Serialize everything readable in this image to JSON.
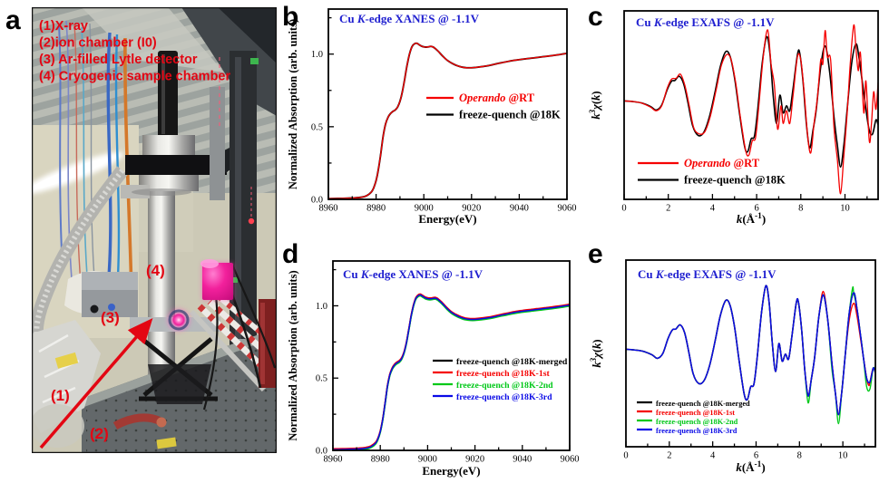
{
  "panels": {
    "a": "a",
    "b": "b",
    "c": "c",
    "d": "d",
    "e": "e"
  },
  "colors": {
    "annotation_red": "#e30613",
    "title_blue": "#2020d0",
    "series_black": "#000000",
    "series_red": "#f50000",
    "series_green": "#00c818",
    "series_blue": "#0a0ae6",
    "photo_pink": "#f2219c"
  },
  "photo": {
    "annotations": [
      "(1)X-ray",
      "(2)ion chamber (I0)",
      "(3) Ar-filled Lytle detector",
      "(4) Cryogenic sample chamber"
    ],
    "labels": {
      "l1": "(1)",
      "l2": "(2)",
      "l3": "(3)",
      "l4": "(4)"
    }
  },
  "curves": {
    "xanes": [
      [
        8960,
        0.005
      ],
      [
        8964,
        0.006
      ],
      [
        8968,
        0.008
      ],
      [
        8971,
        0.01
      ],
      [
        8974,
        0.015
      ],
      [
        8976,
        0.025
      ],
      [
        8978,
        0.05
      ],
      [
        8979,
        0.08
      ],
      [
        8980,
        0.13
      ],
      [
        8981,
        0.21
      ],
      [
        8982,
        0.32
      ],
      [
        8983,
        0.44
      ],
      [
        8984,
        0.52
      ],
      [
        8985,
        0.565
      ],
      [
        8986,
        0.59
      ],
      [
        8987,
        0.605
      ],
      [
        8988,
        0.615
      ],
      [
        8989,
        0.635
      ],
      [
        8990,
        0.675
      ],
      [
        8991,
        0.74
      ],
      [
        8992,
        0.83
      ],
      [
        8993,
        0.925
      ],
      [
        8994,
        1
      ],
      [
        8995,
        1.05
      ],
      [
        8996,
        1.07
      ],
      [
        8997,
        1.075
      ],
      [
        8998,
        1.065
      ],
      [
        8999,
        1.055
      ],
      [
        9000,
        1.05
      ],
      [
        9001,
        1.048
      ],
      [
        9002,
        1.05
      ],
      [
        9003,
        1.053
      ],
      [
        9004,
        1.048
      ],
      [
        9005,
        1.035
      ],
      [
        9006,
        1.02
      ],
      [
        9008,
        0.985
      ],
      [
        9010,
        0.955
      ],
      [
        9012,
        0.935
      ],
      [
        9014,
        0.92
      ],
      [
        9016,
        0.91
      ],
      [
        9018,
        0.906
      ],
      [
        9020,
        0.906
      ],
      [
        9022,
        0.909
      ],
      [
        9025,
        0.915
      ],
      [
        9028,
        0.924
      ],
      [
        9031,
        0.935
      ],
      [
        9034,
        0.945
      ],
      [
        9037,
        0.955
      ],
      [
        9040,
        0.962
      ],
      [
        9043,
        0.968
      ],
      [
        9046,
        0.974
      ],
      [
        9050,
        0.982
      ],
      [
        9054,
        0.99
      ],
      [
        9057,
        0.997
      ],
      [
        9060,
        1.005
      ]
    ],
    "exafs_fq": [
      [
        0,
        0.02
      ],
      [
        0.4,
        0.01
      ],
      [
        0.8,
        -0.01
      ],
      [
        1.2,
        -0.06
      ],
      [
        1.45,
        -0.11
      ],
      [
        1.7,
        -0.04
      ],
      [
        1.95,
        0.18
      ],
      [
        2.15,
        0.3
      ],
      [
        2.3,
        0.31
      ],
      [
        2.5,
        0.37
      ],
      [
        2.7,
        0.26
      ],
      [
        2.9,
        -0.02
      ],
      [
        3.1,
        -0.33
      ],
      [
        3.35,
        -0.47
      ],
      [
        3.6,
        -0.43
      ],
      [
        3.85,
        -0.22
      ],
      [
        4.1,
        0.12
      ],
      [
        4.35,
        0.5
      ],
      [
        4.6,
        0.72
      ],
      [
        4.8,
        0.65
      ],
      [
        5,
        0.35
      ],
      [
        5.2,
        -0.1
      ],
      [
        5.45,
        -0.62
      ],
      [
        5.6,
        -0.7
      ],
      [
        5.75,
        -0.52
      ],
      [
        5.9,
        -0.48
      ],
      [
        6.05,
        -0.1
      ],
      [
        6.25,
        0.55
      ],
      [
        6.45,
        0.93
      ],
      [
        6.6,
        0.7
      ],
      [
        6.75,
        0.1
      ],
      [
        6.9,
        -0.3
      ],
      [
        7.05,
        0.1
      ],
      [
        7.2,
        -0.15
      ],
      [
        7.35,
        -0.05
      ],
      [
        7.5,
        -0.12
      ],
      [
        7.65,
        0.2
      ],
      [
        7.85,
        0.68
      ],
      [
        7.95,
        0.7
      ],
      [
        8.1,
        0.3
      ],
      [
        8.25,
        -0.3
      ],
      [
        8.4,
        -0.65
      ],
      [
        8.55,
        -0.4
      ],
      [
        8.7,
        -0.1
      ],
      [
        8.9,
        0.5
      ],
      [
        9.1,
        0.8
      ],
      [
        9.3,
        0.45
      ],
      [
        9.5,
        -0.2
      ],
      [
        9.65,
        -0.6
      ],
      [
        9.8,
        -0.92
      ],
      [
        9.95,
        -0.6
      ],
      [
        10.1,
        -0.1
      ],
      [
        10.3,
        0.55
      ],
      [
        10.5,
        0.83
      ],
      [
        10.65,
        0.6
      ],
      [
        10.8,
        0.25
      ],
      [
        10.95,
        -0.1
      ],
      [
        11.1,
        -0.4
      ],
      [
        11.25,
        -0.45
      ],
      [
        11.4,
        -0.25
      ],
      [
        11.5,
        -0.32
      ]
    ],
    "exafs_op": [
      [
        0,
        0.02
      ],
      [
        0.4,
        0.01
      ],
      [
        0.8,
        -0.01
      ],
      [
        1.2,
        -0.07
      ],
      [
        1.45,
        -0.12
      ],
      [
        1.7,
        -0.05
      ],
      [
        1.95,
        0.2
      ],
      [
        2.15,
        0.33
      ],
      [
        2.35,
        0.34
      ],
      [
        2.55,
        0.4
      ],
      [
        2.75,
        0.24
      ],
      [
        2.95,
        -0.05
      ],
      [
        3.15,
        -0.36
      ],
      [
        3.4,
        -0.45
      ],
      [
        3.65,
        -0.42
      ],
      [
        3.9,
        -0.2
      ],
      [
        4.15,
        0.15
      ],
      [
        4.4,
        0.52
      ],
      [
        4.65,
        0.68
      ],
      [
        4.85,
        0.6
      ],
      [
        5.05,
        0.28
      ],
      [
        5.25,
        -0.18
      ],
      [
        5.5,
        -0.68
      ],
      [
        5.65,
        -0.75
      ],
      [
        5.8,
        -0.55
      ],
      [
        5.95,
        -0.5
      ],
      [
        6.1,
        -0.05
      ],
      [
        6.3,
        0.65
      ],
      [
        6.5,
        1.03
      ],
      [
        6.65,
        0.55
      ],
      [
        6.8,
        0.25
      ],
      [
        6.95,
        -0.38
      ],
      [
        7.1,
        -0.05
      ],
      [
        7.2,
        -0.3
      ],
      [
        7.35,
        -0.12
      ],
      [
        7.5,
        -0.3
      ],
      [
        7.65,
        0.1
      ],
      [
        7.85,
        0.65
      ],
      [
        8,
        0.6
      ],
      [
        8.15,
        0.15
      ],
      [
        8.3,
        -0.45
      ],
      [
        8.45,
        -0.72
      ],
      [
        8.6,
        -0.3
      ],
      [
        8.75,
        0.05
      ],
      [
        8.9,
        0.6
      ],
      [
        9,
        0.55
      ],
      [
        9.1,
        1.02
      ],
      [
        9.2,
        0.65
      ],
      [
        9.35,
        0.6
      ],
      [
        9.5,
        -0.35
      ],
      [
        9.65,
        -0.8
      ],
      [
        9.8,
        -1.3
      ],
      [
        9.95,
        -0.75
      ],
      [
        10.1,
        -0.15
      ],
      [
        10.25,
        0.6
      ],
      [
        10.4,
        1.1
      ],
      [
        10.5,
        0.75
      ],
      [
        10.6,
        0.45
      ],
      [
        10.7,
        0.7
      ],
      [
        10.85,
        -0.15
      ],
      [
        10.95,
        0.3
      ],
      [
        11.1,
        -0.55
      ],
      [
        11.2,
        -0.3
      ],
      [
        11.3,
        0.15
      ],
      [
        11.4,
        -0.1
      ],
      [
        11.5,
        0.28
      ]
    ],
    "exafs_e_red_mods": [
      [
        9.1,
        0.85
      ],
      [
        10.3,
        0.45
      ],
      [
        10.5,
        0.68
      ],
      [
        10.65,
        0.5
      ],
      [
        10.8,
        0.2
      ],
      [
        11.2,
        -0.5
      ]
    ],
    "exafs_e_green_mods": [
      [
        8.4,
        -0.75
      ],
      [
        9.5,
        -0.28
      ],
      [
        9.8,
        -1.05
      ],
      [
        10.45,
        0.9
      ],
      [
        11.1,
        -0.52
      ],
      [
        11.25,
        -0.55
      ]
    ]
  },
  "chart_data": [
    {
      "id": "b",
      "type": "line",
      "title": [
        {
          "t": "Cu "
        },
        {
          "t": "K",
          "i": 1
        },
        {
          "t": "-edge XANES @ -1.1V"
        }
      ],
      "title_color": "#2020d0",
      "xlabel": [
        {
          "t": "Energy(eV)"
        }
      ],
      "ylabel": [
        {
          "t": "Normalized Absorption (arb. units)"
        }
      ],
      "xlim": [
        8960,
        9060
      ],
      "ylim": [
        0,
        1.31
      ],
      "xticks": [
        {
          "v": 8960,
          "t": "8960"
        },
        {
          "v": 8980,
          "t": "8980"
        },
        {
          "v": 9000,
          "t": "9000"
        },
        {
          "v": 9020,
          "t": "9020"
        },
        {
          "v": 9040,
          "t": "9040"
        },
        {
          "v": 9060,
          "t": "9060"
        }
      ],
      "xminor": [
        8970,
        8990,
        9010,
        9030,
        9050
      ],
      "yticks": [
        {
          "v": 0,
          "t": "0.0"
        },
        {
          "v": 0.5,
          "t": "0.5"
        },
        {
          "v": 1,
          "t": "1.0"
        }
      ],
      "yminor": [
        0.25,
        0.75,
        1.25
      ],
      "series": [
        {
          "name": "freeze-quench @18K",
          "curve": "xanes",
          "color": "#000000",
          "w": 1.9
        },
        {
          "name": "Operando @RT",
          "curve": "xanes",
          "color": "#f50000",
          "w": 1.3
        }
      ],
      "legend": [
        {
          "segs": [
            {
              "t": "Operando",
              "i": 1
            },
            {
              "t": " @RT"
            }
          ],
          "color": "#f50000"
        },
        {
          "segs": [
            {
              "t": "freeze-quench @18K"
            }
          ],
          "color": "#000000"
        }
      ]
    },
    {
      "id": "c",
      "type": "line",
      "title": [
        {
          "t": "Cu "
        },
        {
          "t": "K",
          "i": 1
        },
        {
          "t": "-edge EXAFS @ -1.1V"
        }
      ],
      "title_color": "#2020d0",
      "xlabel": [
        {
          "t": "k",
          "i": 1
        },
        {
          "t": "(Å"
        },
        {
          "t": "-1",
          "sup": 1
        },
        {
          "t": ")"
        }
      ],
      "ylabel": [
        {
          "t": "k",
          "i": 1
        },
        {
          "t": "3",
          "i": 1,
          "sup": 1
        },
        {
          "t": "χ",
          "i": 1
        },
        {
          "t": "("
        },
        {
          "t": "k",
          "i": 1
        },
        {
          "t": ")"
        }
      ],
      "xlim": [
        0,
        11.5
      ],
      "ylim": [
        -1.38,
        1.3
      ],
      "xticks": [
        {
          "v": 0,
          "t": "0"
        },
        {
          "v": 2,
          "t": "2"
        },
        {
          "v": 4,
          "t": "4"
        },
        {
          "v": 6,
          "t": "6"
        },
        {
          "v": 8,
          "t": "8"
        },
        {
          "v": 10,
          "t": "10"
        }
      ],
      "xminor": [
        1,
        3,
        5,
        7,
        9,
        11
      ],
      "yticks": [],
      "yminor": [],
      "series": [
        {
          "name": "freeze-quench @18K",
          "curve": "exafs_fq",
          "color": "#000000",
          "w": 1.6
        },
        {
          "name": "Operando @RT",
          "curve": "exafs_op",
          "color": "#f50000",
          "w": 1.3
        }
      ],
      "legend": [
        {
          "segs": [
            {
              "t": "Operando",
              "i": 1
            },
            {
              "t": " @RT"
            }
          ],
          "color": "#f50000"
        },
        {
          "segs": [
            {
              "t": "freeze-quench @18K"
            }
          ],
          "color": "#000000"
        }
      ]
    },
    {
      "id": "d",
      "type": "line",
      "title": [
        {
          "t": "Cu "
        },
        {
          "t": "K",
          "i": 1
        },
        {
          "t": "-edge XANES @ -1.1V"
        }
      ],
      "title_color": "#2020d0",
      "xlabel": [
        {
          "t": "Energy(eV)"
        }
      ],
      "ylabel": [
        {
          "t": "Normalized Absorption (arb. units)"
        }
      ],
      "xlim": [
        8960,
        9060
      ],
      "ylim": [
        0,
        1.31
      ],
      "xticks": [
        {
          "v": 8960,
          "t": "8960"
        },
        {
          "v": 8980,
          "t": "8980"
        },
        {
          "v": 9000,
          "t": "9000"
        },
        {
          "v": 9020,
          "t": "9020"
        },
        {
          "v": 9040,
          "t": "9040"
        },
        {
          "v": 9060,
          "t": "9060"
        }
      ],
      "xminor": [
        8970,
        8990,
        9010,
        9030,
        9050
      ],
      "yticks": [
        {
          "v": 0,
          "t": "0.0"
        },
        {
          "v": 0.5,
          "t": "0.5"
        },
        {
          "v": 1,
          "t": "1.0"
        }
      ],
      "yminor": [
        0.25,
        0.75,
        1.25
      ],
      "series": [
        {
          "name": "freeze-quench @18K-merged",
          "curve": "xanes",
          "color": "#000000",
          "w": 1.8
        },
        {
          "name": "freeze-quench @18K-1st",
          "curve": "xanes",
          "color": "#f50000",
          "w": 1.6,
          "dy": 0.006
        },
        {
          "name": "freeze-quench @18K-2nd",
          "curve": "xanes",
          "color": "#00c818",
          "w": 1.6,
          "dy": -0.007
        },
        {
          "name": "freeze-quench @18K-3rd",
          "curve": "xanes",
          "color": "#0a0ae6",
          "w": 1.5
        }
      ],
      "legend": [
        {
          "segs": [
            {
              "t": "freeze-quench @18K-merged"
            }
          ],
          "color": "#000000"
        },
        {
          "segs": [
            {
              "t": "freeze-quench @18K-1st"
            }
          ],
          "color": "#f50000"
        },
        {
          "segs": [
            {
              "t": "freeze-quench @18K-2nd"
            }
          ],
          "color": "#00c818"
        },
        {
          "segs": [
            {
              "t": "freeze-quench @18K-3rd"
            }
          ],
          "color": "#0a0ae6"
        }
      ]
    },
    {
      "id": "e",
      "type": "line",
      "title": [
        {
          "t": "Cu "
        },
        {
          "t": "K",
          "i": 1
        },
        {
          "t": "-edge EXAFS @ -1.1V"
        }
      ],
      "title_color": "#2020d0",
      "xlabel": [
        {
          "t": "k",
          "i": 1
        },
        {
          "t": "(Å"
        },
        {
          "t": "-1",
          "sup": 1
        },
        {
          "t": ")"
        }
      ],
      "ylabel": [
        {
          "t": "k",
          "i": 1
        },
        {
          "t": "3",
          "i": 1,
          "sup": 1
        },
        {
          "t": "χ",
          "i": 1
        },
        {
          "t": "("
        },
        {
          "t": "k",
          "i": 1
        },
        {
          "t": ")"
        }
      ],
      "xlim": [
        0,
        11.5
      ],
      "ylim": [
        -1.38,
        1.3
      ],
      "xticks": [
        {
          "v": 0,
          "t": "0"
        },
        {
          "v": 2,
          "t": "2"
        },
        {
          "v": 4,
          "t": "4"
        },
        {
          "v": 6,
          "t": "6"
        },
        {
          "v": 8,
          "t": "8"
        },
        {
          "v": 10,
          "t": "10"
        }
      ],
      "xminor": [
        1,
        3,
        5,
        7,
        9,
        11
      ],
      "yticks": [],
      "yminor": [],
      "series": [
        {
          "name": "freeze-quench @18K-merged",
          "curve": "exafs_fq",
          "color": "#000000",
          "w": 1.6
        },
        {
          "name": "freeze-quench @18K-1st",
          "curve": "exafs_fq",
          "mods": "exafs_e_red_mods",
          "color": "#f50000",
          "w": 1.4
        },
        {
          "name": "freeze-quench @18K-2nd",
          "curve": "exafs_fq",
          "mods": "exafs_e_green_mods",
          "color": "#00c818",
          "w": 1.4
        },
        {
          "name": "freeze-quench @18K-3rd",
          "curve": "exafs_fq",
          "color": "#0a0ae6",
          "w": 1.5
        }
      ],
      "legend": [
        {
          "segs": [
            {
              "t": "freeze-quench @18K-merged"
            }
          ],
          "color": "#000000"
        },
        {
          "segs": [
            {
              "t": "freeze-quench @18K-1st"
            }
          ],
          "color": "#f50000"
        },
        {
          "segs": [
            {
              "t": "freeze-quench @18K-2nd"
            }
          ],
          "color": "#00c818"
        },
        {
          "segs": [
            {
              "t": "freeze-quench @18K-3rd"
            }
          ],
          "color": "#0a0ae6"
        }
      ]
    }
  ]
}
